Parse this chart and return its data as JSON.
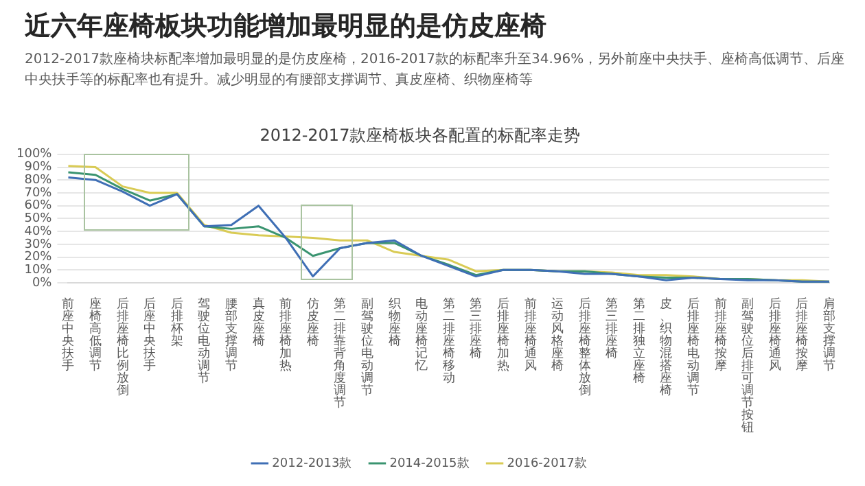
{
  "chart_data": {
    "type": "line",
    "title": "2012-2017款座椅板块各配置的标配率走势",
    "annotations": [
      "近六年座椅板块功能增加最明显的是仿皮座椅",
      "2012-2017款座椅块标配率增加最明显的是仿皮座椅，2016-2017款的标配率升至34.96%，另外前座中央扶手、座椅高低调节、后座中央扶手等的标配率也有提升。减少明显的有腰部支撑调节、真皮座椅、织物座椅等"
    ],
    "categories": [
      "前座中央扶手",
      "座椅高低调节",
      "后排座椅比例放倒",
      "后座中央扶手",
      "后排杯架",
      "驾驶位电动调节",
      "腰部支撑调节",
      "真皮座椅",
      "前排座椅加热",
      "仿皮座椅",
      "第二排靠背角度调节",
      "副驾驶位电动调节",
      "织物座椅",
      "电动座椅记忆",
      "第二排座椅移动",
      "第三排座椅",
      "后排座椅加热",
      "前排座椅通风",
      "运动风格座椅",
      "后排座椅整体放倒",
      "第三排座椅",
      "第二排独立座椅",
      "皮、织物混搭座椅",
      "后排座椅电动调节",
      "前排座椅按摩",
      "副驾驶位后排可调节按钮",
      "后排座椅通风",
      "后排座椅按摩",
      "肩部支撑调节"
    ],
    "series": [
      {
        "name": "2012-2013款",
        "color": "#3f6fb5",
        "values": [
          82,
          80,
          71,
          60,
          69,
          44,
          45,
          60,
          35,
          5,
          27,
          31,
          33,
          21,
          13,
          5,
          10,
          10,
          9,
          7,
          7,
          5,
          2,
          4,
          3,
          2,
          2,
          1,
          1
        ]
      },
      {
        "name": "2014-2015款",
        "color": "#3a9470",
        "values": [
          86,
          84,
          73,
          64,
          69,
          44,
          42,
          44,
          35,
          21,
          27,
          31,
          31,
          21,
          14,
          6,
          10,
          10,
          9,
          9,
          7,
          5,
          4,
          4,
          3,
          3,
          2,
          1,
          1
        ]
      },
      {
        "name": "2016-2017款",
        "color": "#d9cb55",
        "values": [
          91,
          90,
          75,
          70,
          70,
          45,
          39,
          37,
          36,
          35,
          33,
          33,
          24,
          21,
          18,
          9,
          10,
          10,
          9,
          9,
          8,
          6,
          6,
          5,
          3,
          3,
          2,
          2,
          1
        ]
      }
    ],
    "ylim": [
      0,
      100
    ],
    "yticks": [
      {
        "value": 0,
        "label": "0%"
      },
      {
        "value": 10,
        "label": "10%"
      },
      {
        "value": 20,
        "label": "20%"
      },
      {
        "value": 30,
        "label": "30%"
      },
      {
        "value": 40,
        "label": "40%"
      },
      {
        "value": 50,
        "label": "50%"
      },
      {
        "value": 60,
        "label": "60%"
      },
      {
        "value": 70,
        "label": "70%"
      },
      {
        "value": 80,
        "label": "80%"
      },
      {
        "value": 90,
        "label": "90%"
      },
      {
        "value": 100,
        "label": "100%"
      }
    ],
    "grid": "y",
    "legend": "bottom",
    "marker": "none",
    "line_style": "solid"
  }
}
